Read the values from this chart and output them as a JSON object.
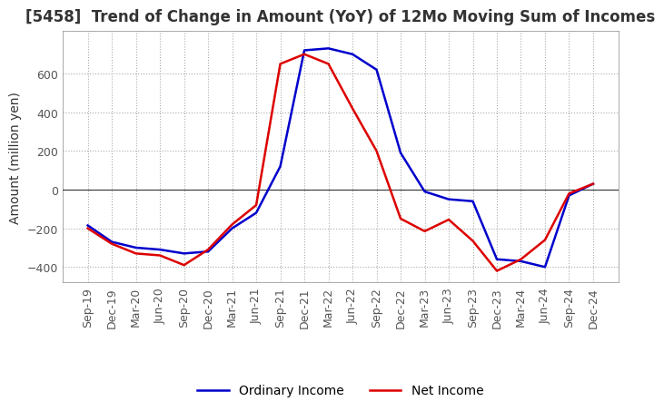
{
  "title": "[5458]  Trend of Change in Amount (YoY) of 12Mo Moving Sum of Incomes",
  "ylabel": "Amount (million yen)",
  "title_fontsize": 12,
  "label_fontsize": 10,
  "tick_fontsize": 9,
  "background_color": "#ffffff",
  "grid_color": "#aaaaaa",
  "ordinary_income_color": "#0000cc",
  "net_income_color": "#dd0000",
  "ylim": [
    -480,
    820
  ],
  "yticks": [
    -400,
    -200,
    0,
    200,
    400,
    600
  ],
  "x_labels": [
    "Sep-19",
    "Dec-19",
    "Mar-20",
    "Jun-20",
    "Sep-20",
    "Dec-20",
    "Mar-21",
    "Jun-21",
    "Sep-21",
    "Dec-21",
    "Mar-22",
    "Jun-22",
    "Sep-22",
    "Dec-22",
    "Mar-23",
    "Jun-23",
    "Sep-23",
    "Dec-23",
    "Mar-24",
    "Jun-24",
    "Sep-24",
    "Dec-24"
  ],
  "ordinary_income": [
    -185,
    -270,
    -300,
    -310,
    -330,
    -320,
    -200,
    -120,
    120,
    720,
    730,
    700,
    620,
    190,
    -10,
    -50,
    -60,
    -360,
    -370,
    -400,
    -30,
    30
  ],
  "net_income": [
    -200,
    -280,
    -330,
    -340,
    -390,
    -310,
    -180,
    -80,
    650,
    700,
    650,
    420,
    200,
    -150,
    -215,
    -155,
    -265,
    -420,
    -360,
    -260,
    -20,
    30
  ]
}
